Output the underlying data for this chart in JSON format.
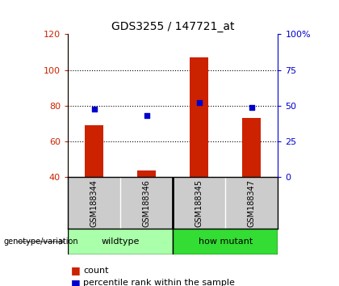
{
  "title": "GDS3255 / 147721_at",
  "samples": [
    "GSM188344",
    "GSM188346",
    "GSM188345",
    "GSM188347"
  ],
  "counts": [
    69,
    44,
    107,
    73
  ],
  "percentiles": [
    48,
    43,
    52,
    49
  ],
  "group_labels": [
    "wildtype",
    "how mutant"
  ],
  "group_colors": [
    "#AAFFAA",
    "#33DD33"
  ],
  "ylim_left": [
    40,
    120
  ],
  "ylim_right": [
    0,
    100
  ],
  "yticks_left": [
    40,
    60,
    80,
    100,
    120
  ],
  "yticks_right": [
    0,
    25,
    50,
    75,
    100
  ],
  "yticklabels_right": [
    "0",
    "25",
    "50",
    "75",
    "100%"
  ],
  "bar_color": "#CC2200",
  "scatter_color": "#0000CC",
  "bar_width": 0.35,
  "bg_color": "#FFFFFF",
  "cell_bg": "#CCCCCC",
  "legend_count_color": "#CC2200",
  "legend_pct_color": "#0000CC",
  "dotted_lines": [
    60,
    80,
    100
  ]
}
